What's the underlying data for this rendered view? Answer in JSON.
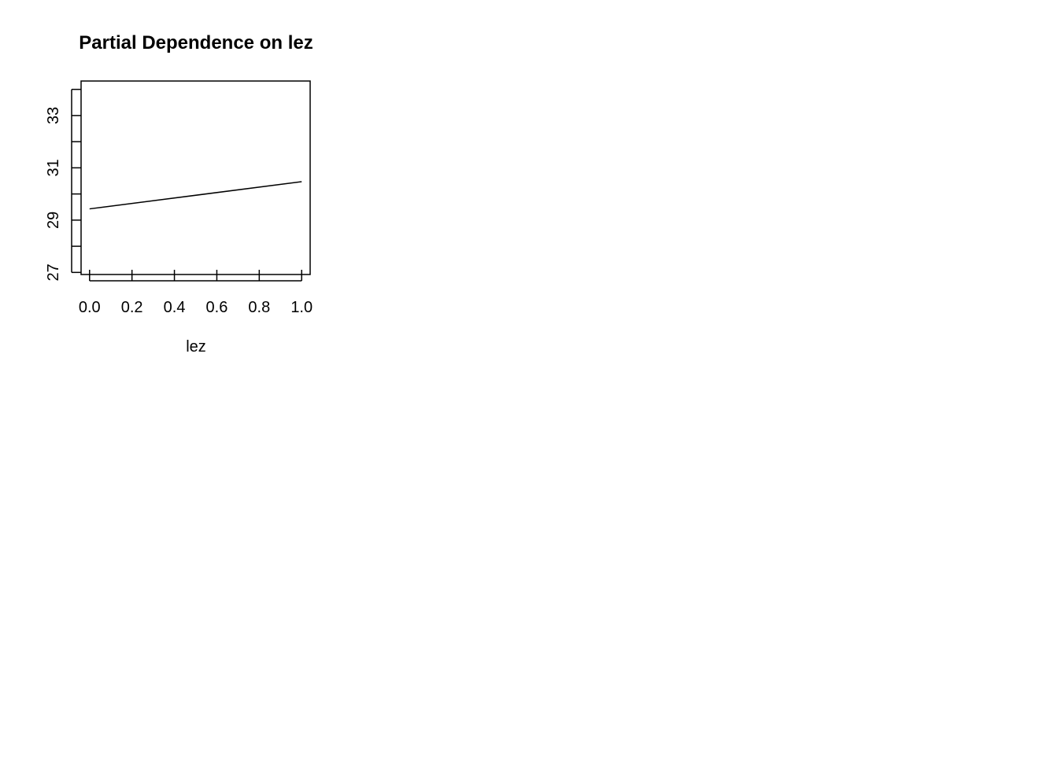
{
  "chart_data": {
    "type": "line",
    "title": "Partial Dependence on lez",
    "xlabel": "lez",
    "ylabel": "",
    "xlim": [
      -0.04,
      1.04
    ],
    "ylim": [
      26.92,
      34.32
    ],
    "x_ticks": [
      0.0,
      0.2,
      0.4,
      0.6,
      0.8,
      1.0
    ],
    "x_tick_labels": [
      "0.0",
      "0.2",
      "0.4",
      "0.6",
      "0.8",
      "1.0"
    ],
    "y_ticks": [
      27,
      28,
      29,
      30,
      31,
      32,
      33,
      34
    ],
    "y_tick_labels": [
      "27",
      "",
      "29",
      "",
      "31",
      "",
      "33",
      ""
    ],
    "grid": false,
    "series": [
      {
        "x": [
          0.0,
          1.0
        ],
        "y": [
          29.43,
          30.47
        ],
        "color": "#000000"
      }
    ]
  }
}
